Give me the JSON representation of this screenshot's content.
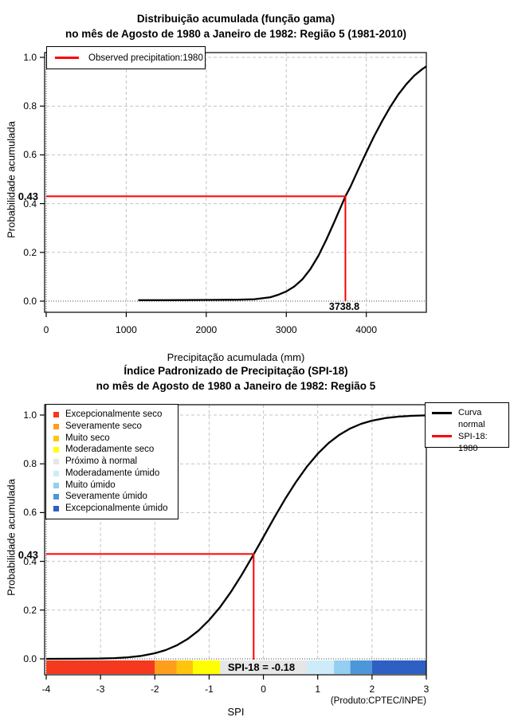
{
  "chart_data": [
    {
      "type": "line",
      "title": "Distribuição acumulada (função gama)",
      "subtitle": "no mês de Agosto de 1980 a Janeiro de 1982: Região 5 (1981-2010)",
      "xlabel": "Precipitação acumulada (mm)",
      "ylabel": "Probabilidade acumulada",
      "xlim": [
        0,
        4750
      ],
      "ylim": [
        0,
        1
      ],
      "x_ticks": [
        0,
        1000,
        2000,
        3000,
        4000
      ],
      "y_ticks": [
        "0.0",
        "0.2",
        "0.4",
        "0.6",
        "0.8",
        "1.0"
      ],
      "grid": true,
      "legend": {
        "position": "top-left",
        "entries": [
          {
            "label": "Observed precipitation:1980",
            "color": "#FF0000",
            "type": "line"
          }
        ]
      },
      "series": [
        {
          "name": "Distribuição gama acumulada",
          "color": "#000000",
          "x": [
            1150,
            1500,
            2000,
            2400,
            2600,
            2800,
            2900,
            3000,
            3100,
            3200,
            3300,
            3400,
            3500,
            3600,
            3700,
            3738.8,
            3800,
            3900,
            4000,
            4100,
            4200,
            4300,
            4400,
            4500,
            4600,
            4700,
            4750
          ],
          "y": [
            0.004,
            0.004,
            0.005,
            0.006,
            0.008,
            0.016,
            0.026,
            0.04,
            0.06,
            0.089,
            0.131,
            0.185,
            0.252,
            0.325,
            0.401,
            0.43,
            0.468,
            0.54,
            0.61,
            0.678,
            0.74,
            0.797,
            0.848,
            0.89,
            0.925,
            0.952,
            0.963
          ]
        }
      ],
      "annotation": {
        "probability": 0.43,
        "probability_label": "0.43",
        "precipitation_mm": 3738.8,
        "precipitation_label": "3738.8",
        "color": "#FF0000"
      }
    },
    {
      "type": "line",
      "title": "Índice Padronizado de Precipitação (SPI-18)",
      "subtitle": "no mês de Agosto de 1980 a Janeiro de 1982: Região 5",
      "xlabel": "SPI",
      "ylabel": "Probabilidade acumulada",
      "xlim": [
        -4,
        3
      ],
      "ylim": [
        0,
        1
      ],
      "x_ticks": [
        -4,
        -3,
        -2,
        -1,
        0,
        1,
        2,
        3
      ],
      "y_ticks": [
        "0.0",
        "0.2",
        "0.4",
        "0.6",
        "0.8",
        "1.0"
      ],
      "grid": true,
      "series": [
        {
          "name": "Curva normal",
          "color": "#000000",
          "x": [
            -4,
            -3.5,
            -3,
            -2.75,
            -2.5,
            -2.25,
            -2,
            -1.8,
            -1.6,
            -1.4,
            -1.2,
            -1,
            -0.8,
            -0.6,
            -0.4,
            -0.2,
            0,
            0.2,
            0.4,
            0.6,
            0.8,
            1,
            1.2,
            1.4,
            1.6,
            1.8,
            2,
            2.25,
            2.5,
            2.75,
            3
          ],
          "y": [
            0.0,
            0.0002,
            0.0013,
            0.003,
            0.0062,
            0.0122,
            0.0228,
            0.0359,
            0.0548,
            0.0808,
            0.1151,
            0.1587,
            0.2119,
            0.2743,
            0.3446,
            0.4207,
            0.5,
            0.5793,
            0.6554,
            0.7257,
            0.7881,
            0.8413,
            0.8849,
            0.9192,
            0.9452,
            0.9641,
            0.9772,
            0.9878,
            0.9938,
            0.997,
            0.9987
          ]
        }
      ],
      "legend_right": {
        "entries": [
          {
            "label_line1": "Curva",
            "label_line2": "normal",
            "color": "#000000"
          },
          {
            "label_line1": "SPI-18: 1980",
            "label_line2": "",
            "color": "#FF0000"
          }
        ]
      },
      "categories": [
        {
          "label": "Excepcionalmente seco",
          "color": "#F5391E"
        },
        {
          "label": "Severamente seco",
          "color": "#FF9E1C"
        },
        {
          "label": "Muito seco",
          "color": "#FFC40D"
        },
        {
          "label": "Moderadamente seco",
          "color": "#FFFF00"
        },
        {
          "label": "Próximo à normal",
          "color": "#E6E6E6"
        },
        {
          "label": "Moderadamente úmido",
          "color": "#CDEBF9"
        },
        {
          "label": "Muito úmido",
          "color": "#94CEF0"
        },
        {
          "label": "Severamente úmido",
          "color": "#4C96D9"
        },
        {
          "label": "Excepcionalmente úmido",
          "color": "#2E5FC2"
        }
      ],
      "colorbar": {
        "boundaries": [
          -4,
          -2,
          -1.6,
          -1.3,
          -0.8,
          0.8,
          1.3,
          1.6,
          2,
          3
        ],
        "colors": [
          "#F5391E",
          "#FF9E1C",
          "#FFC40D",
          "#FFFF00",
          "#E6E6E6",
          "#CDEBF9",
          "#94CEF0",
          "#4C96D9",
          "#2E5FC2"
        ]
      },
      "annotation": {
        "probability": 0.43,
        "probability_label": "0.43",
        "spi": -0.18,
        "spi_label": "SPI-18 = -0.18",
        "color": "#FF0000"
      },
      "footnote": "(Produto:CPTEC/INPE)"
    }
  ]
}
